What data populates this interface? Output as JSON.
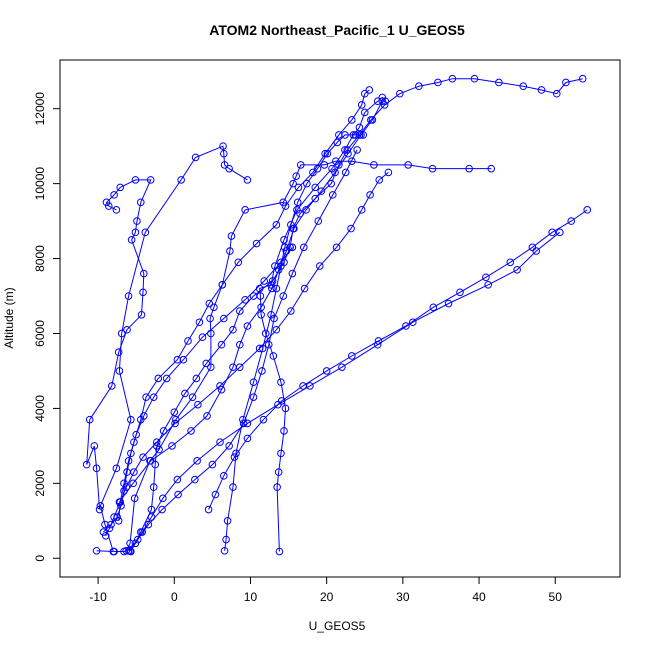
{
  "chart_data": {
    "type": "line",
    "title": "ATOM2 Northeast_Pacific_1 U_GEOS5",
    "xlabel": "U_GEOS5",
    "ylabel": "Altitude (m)",
    "xlim": [
      -15,
      58.5
    ],
    "ylim": [
      -500,
      13300
    ],
    "x_ticks": [
      -10,
      0,
      10,
      20,
      30,
      40,
      50
    ],
    "y_ticks": [
      0,
      2000,
      4000,
      6000,
      8000,
      10000,
      12000
    ],
    "x_tick_labels": [
      "-10",
      "0",
      "10",
      "20",
      "30",
      "40",
      "50"
    ],
    "y_tick_labels": [
      "0",
      "2000",
      "4000",
      "6000",
      "8000",
      "10000",
      "12000"
    ],
    "grid": false,
    "legend": "none",
    "color": "#0000ff",
    "marker": "open-circle",
    "series": [
      {
        "x": [
          -10.2,
          -8.0,
          -9.1,
          -9.7,
          -7.6,
          -5.7,
          -7.2,
          -6.9,
          -6.0,
          -3.8,
          0.9,
          2.8,
          6.4,
          6.5,
          6.6,
          7.2,
          9.6
        ],
        "y": [
          200,
          180,
          900,
          1400,
          2400,
          3700,
          5000,
          6000,
          7000,
          8700,
          10100,
          10700,
          11000,
          10800,
          10500,
          10400,
          10100
        ]
      },
      {
        "x": [
          -7.9,
          -6.6,
          -6.3,
          -5.8,
          -5.2,
          -3.2,
          -2.0,
          0.2,
          2.4,
          4.8,
          4.8,
          4.7,
          5.2,
          6.3,
          7.3,
          7.5,
          9.3,
          14.3,
          15.6,
          16.0,
          16.6,
          19.7,
          21.2,
          23.3,
          26.2,
          30.7,
          33.9,
          38.7,
          41.6
        ],
        "y": [
          180,
          180,
          200,
          400,
          1600,
          2600,
          2900,
          3700,
          4300,
          5100,
          6000,
          6400,
          6700,
          7300,
          8200,
          8600,
          9300,
          9500,
          10000,
          10200,
          10500,
          10500,
          10600,
          10600,
          10500,
          10500,
          10400,
          10400,
          10400
        ]
      },
      {
        "x": [
          -5.7,
          -4.4,
          -3.0,
          -2.7,
          -2.5,
          -2.3,
          -1.4,
          0.0,
          1.4,
          2.9,
          4.2,
          6.2,
          7.7,
          8.6,
          10.4,
          12.9,
          14.4,
          15.2,
          15.6,
          16.5,
          18.5,
          20.6,
          21.6,
          22.7,
          24.3,
          25.8,
          27.6,
          29.6,
          32.1,
          34.6,
          36.5,
          39.4,
          42.6,
          45.8,
          48.2,
          50.2,
          51.4,
          53.6
        ],
        "y": [
          180,
          700,
          1300,
          1900,
          2500,
          3000,
          3400,
          3900,
          4400,
          4800,
          5200,
          5700,
          6100,
          6600,
          7000,
          7400,
          7900,
          8300,
          8800,
          9200,
          9600,
          10000,
          10500,
          10900,
          11300,
          11700,
          12100,
          12400,
          12600,
          12700,
          12800,
          12800,
          12700,
          12600,
          12500,
          12400,
          12700,
          12800
        ]
      },
      {
        "x": [
          -7.3,
          -7.1,
          -6.6,
          -6.0,
          -5.3,
          -4.4,
          -3.7,
          -2.1,
          0.4,
          1.8,
          3.3,
          4.6,
          6.3,
          8.4,
          10.8,
          13.4,
          14.6,
          16.3,
          18.2,
          19.8,
          21.6,
          23.3,
          24.6,
          25.0,
          25.6
        ],
        "y": [
          1000,
          1500,
          2000,
          2600,
          3100,
          3700,
          4300,
          4800,
          5300,
          5800,
          6300,
          6800,
          7300,
          7900,
          8400,
          8900,
          9400,
          9900,
          10300,
          10800,
          11300,
          11700,
          12100,
          12400,
          12500
        ]
      },
      {
        "x": [
          -9.8,
          -10.2,
          -10.5,
          -11.5,
          -11.1,
          -8.2,
          -7.3,
          -6.2,
          -4.3,
          -4.1,
          -4.0,
          -5.6,
          -5.1,
          -4.9,
          -4.4,
          -3.1,
          -5.1,
          -7.1,
          -7.9,
          -8.9,
          -8.6,
          -7.6
        ],
        "y": [
          1300,
          2400,
          3000,
          2500,
          3700,
          4600,
          5500,
          6100,
          6500,
          7100,
          7600,
          8500,
          8700,
          9000,
          9500,
          10100,
          10100,
          9900,
          9700,
          9500,
          9400,
          9300
        ]
      },
      {
        "x": [
          -9.0,
          -8.5,
          -7.9,
          -7.1,
          -6.3,
          -5.3,
          -4.1,
          -2.3,
          0.1,
          3.1,
          6.0,
          8.6,
          11.2,
          13.4,
          15.3,
          17.1,
          19.1,
          21.3,
          23.2,
          24.6,
          25.7,
          26.9,
          28.1
        ],
        "y": [
          600,
          800,
          1100,
          1500,
          1900,
          2300,
          2700,
          3100,
          3600,
          4100,
          4600,
          5100,
          5600,
          6100,
          6600,
          7200,
          7800,
          8300,
          8800,
          9300,
          9700,
          10100,
          10300
        ]
      },
      {
        "x": [
          -7.2,
          -5.4,
          -3.1,
          -0.3,
          2.2,
          4.3,
          6.2,
          7.7,
          8.6,
          9.6,
          11.4,
          12.8,
          13.7,
          14.7,
          15.7,
          17.3,
          19.3,
          21.1,
          22.8,
          24.5,
          26.0,
          27.3
        ],
        "y": [
          1500,
          2000,
          2600,
          3000,
          3400,
          3800,
          4500,
          5100,
          5700,
          6200,
          6700,
          7200,
          7700,
          8200,
          8800,
          9300,
          9800,
          10300,
          10800,
          11300,
          11700,
          12200
        ]
      },
      {
        "x": [
          -6.0,
          -4.8,
          -3.4,
          -1.6,
          0.5,
          2.7,
          5.0,
          7.2,
          9.1,
          10.4,
          11.5,
          12.4,
          13.1,
          14.3,
          15.5,
          17.0,
          18.9,
          20.8,
          22.5,
          24.0
        ],
        "y": [
          200,
          500,
          900,
          1300,
          1700,
          2100,
          2500,
          3000,
          3600,
          4300,
          5000,
          5700,
          6400,
          7000,
          7600,
          8300,
          9000,
          9700,
          10300,
          10900
        ]
      },
      {
        "x": [
          6.6,
          6.8,
          7.0,
          7.7,
          8.1,
          9.0,
          10.4,
          11.6,
          12.7,
          13.4,
          14.0,
          14.5,
          15.3,
          16.2,
          17.4,
          18.8,
          20.1,
          21.4,
          22.4,
          23.8,
          24.8
        ],
        "y": [
          200,
          500,
          1000,
          1900,
          2800,
          3700,
          4700,
          5600,
          6500,
          7200,
          7800,
          8300,
          8900,
          9500,
          10000,
          10400,
          10800,
          11100,
          11300,
          11300,
          11300
        ]
      },
      {
        "x": [
          13.8,
          13.5,
          13.7,
          14.0,
          14.4,
          14.6,
          14.0,
          13.0,
          12.0,
          11.4,
          11.3,
          11.2,
          12.7,
          13.2,
          14.4,
          16.1,
          18.5,
          20.7,
          22.4,
          23.5,
          24.3,
          25.0,
          26.7,
          27.3,
          27.7
        ],
        "y": [
          180,
          1900,
          2300,
          2800,
          3400,
          4000,
          4700,
          5400,
          6000,
          6500,
          7000,
          7200,
          7300,
          7800,
          8500,
          9300,
          9900,
          10400,
          10900,
          11300,
          11500,
          11900,
          12200,
          12300,
          12200
        ]
      },
      {
        "x": [
          50.6,
          47.5,
          45.0,
          41.2,
          36.0,
          31.3,
          26.7,
          22.0,
          17.8,
          13.6,
          9.6,
          6.0,
          3.0,
          0.4,
          -1.5,
          -3.0,
          -4.2,
          -5.1,
          -5.8
        ],
        "y": [
          8700,
          8200,
          7700,
          7300,
          6800,
          6300,
          5700,
          5100,
          4600,
          4100,
          3600,
          3100,
          2600,
          2100,
          1600,
          1100,
          700,
          400,
          200
        ]
      },
      {
        "x": [
          54.2,
          52.1,
          49.6,
          47.0,
          44.1,
          40.9,
          37.5,
          34.0,
          30.4,
          26.8,
          23.3,
          20.0,
          16.9,
          14.1,
          11.7,
          9.6,
          7.9,
          6.5,
          5.4,
          4.5
        ],
        "y": [
          9300,
          9000,
          8700,
          8300,
          7900,
          7500,
          7100,
          6700,
          6200,
          5800,
          5400,
          5000,
          4600,
          4200,
          3700,
          3200,
          2700,
          2200,
          1700,
          1300
        ]
      },
      {
        "x": [
          -9.3,
          -8.3,
          -7.5,
          -7.0,
          -6.6,
          -6.2,
          -5.7,
          -5.0,
          -4.0,
          -2.7,
          -1.0,
          1.2,
          3.7,
          6.5,
          9.3,
          11.8,
          14.0,
          15.5
        ],
        "y": [
          700,
          900,
          1100,
          1400,
          1800,
          2300,
          2800,
          3300,
          3800,
          4300,
          4800,
          5300,
          5900,
          6400,
          6900,
          7400,
          7900,
          8300
        ]
      }
    ]
  }
}
